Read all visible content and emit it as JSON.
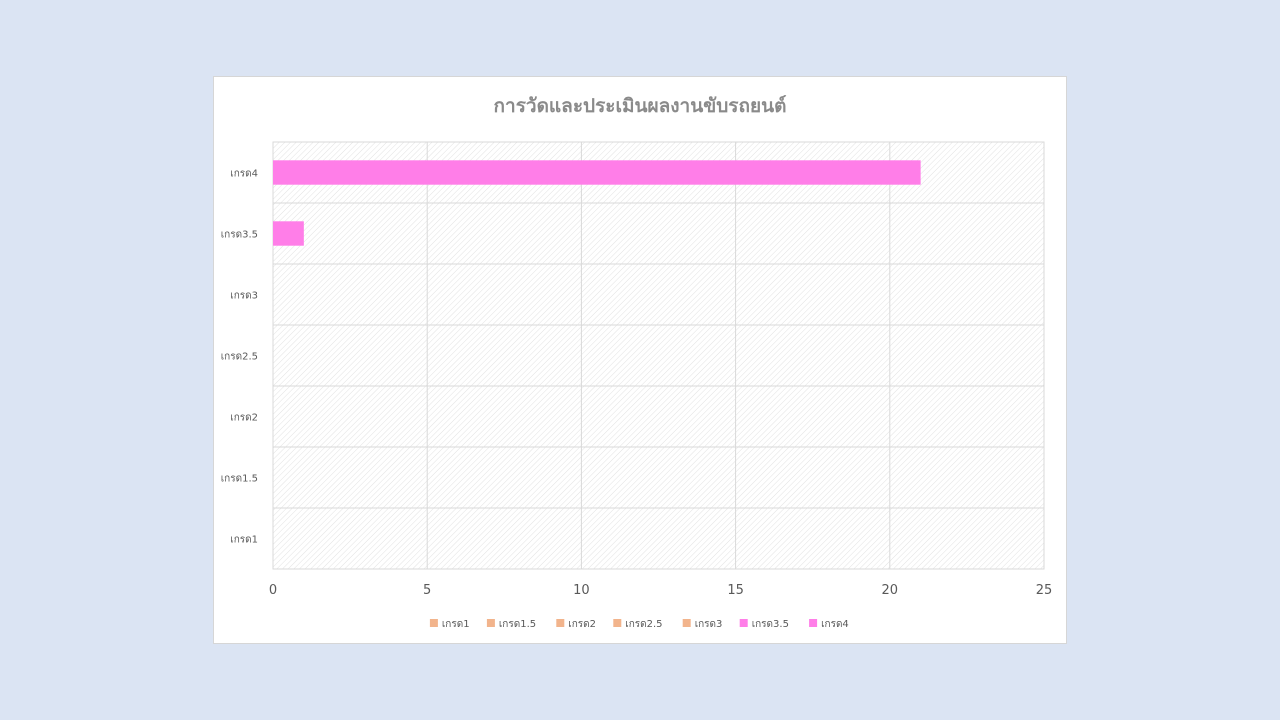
{
  "chart_data": {
    "type": "bar",
    "orientation": "horizontal",
    "title": "การวัดและประเมินผลงานขับรถยนต์",
    "categories": [
      "เกรด1",
      "เกรด1.5",
      "เกรด2",
      "เกรด2.5",
      "เกรด3",
      "เกรด3.5",
      "เกรด4"
    ],
    "values": [
      0,
      0,
      0,
      0,
      0,
      1,
      21
    ],
    "xlim": [
      0,
      25
    ],
    "xticks": [
      "0",
      "5",
      "10",
      "15",
      "20",
      "25"
    ],
    "grid": true,
    "legend_position": "bottom",
    "legend": [
      {
        "label": "เกรด1",
        "color": "#f2b48c"
      },
      {
        "label": "เกรด1.5",
        "color": "#f2b48c"
      },
      {
        "label": "เกรด2",
        "color": "#f2b48c"
      },
      {
        "label": "เกรด2.5",
        "color": "#f2b48c"
      },
      {
        "label": "เกรด3",
        "color": "#f2b48c"
      },
      {
        "label": "เกรด3.5",
        "color": "#ff7ee8"
      },
      {
        "label": "เกรด4",
        "color": "#ff7ee8"
      }
    ],
    "bar_colors": [
      "#f2b48c",
      "#f2b48c",
      "#f2b48c",
      "#f2b48c",
      "#f2b48c",
      "#ff7ee8",
      "#ff7ee8"
    ]
  }
}
